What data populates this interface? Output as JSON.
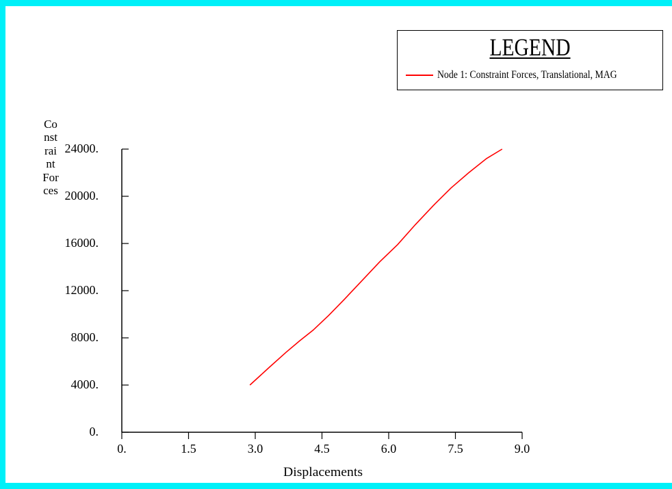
{
  "chart_data": {
    "type": "line",
    "xlabel": "Displacements",
    "ylabel": "Constraint Forces",
    "xlim": [
      0,
      9
    ],
    "ylim": [
      0,
      24000
    ],
    "x_ticks": [
      0,
      1.5,
      3.0,
      4.5,
      6.0,
      7.5,
      9.0
    ],
    "x_tick_labels": [
      "0.",
      "1.5",
      "3.0",
      "4.5",
      "6.0",
      "7.5",
      "9.0"
    ],
    "y_ticks": [
      0,
      4000,
      8000,
      12000,
      16000,
      20000,
      24000
    ],
    "y_tick_labels": [
      "0.",
      "4000.",
      "8000.",
      "12000.",
      "16000.",
      "20000.",
      "24000."
    ],
    "grid": false,
    "legend": {
      "title": "LEGEND",
      "position": "top-right"
    },
    "series": [
      {
        "name": "Node 1: Constraint Forces, Translational, MAG",
        "color": "#ff0000",
        "x": [
          2.88,
          3.3,
          3.7,
          4.0,
          4.3,
          4.65,
          5.0,
          5.4,
          5.8,
          6.2,
          6.6,
          7.0,
          7.4,
          7.8,
          8.2,
          8.55
        ],
        "y": [
          4000,
          5450,
          6800,
          7750,
          8650,
          9900,
          11250,
          12850,
          14450,
          15900,
          17600,
          19200,
          20700,
          22000,
          23200,
          24000
        ]
      }
    ]
  }
}
